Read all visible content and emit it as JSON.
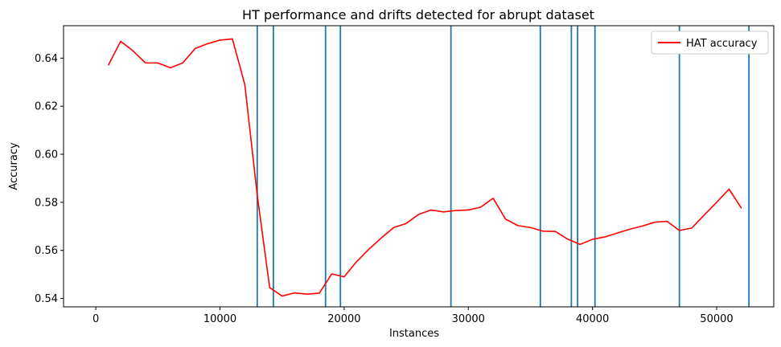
{
  "chart_data": {
    "type": "line",
    "title": "HT performance and drifts detected for abrupt dataset",
    "xlabel": "Instances",
    "ylabel": "Accuracy",
    "xlim": [
      -2600,
      54600
    ],
    "ylim": [
      0.5365,
      0.6535
    ],
    "xticks": [
      0,
      10000,
      20000,
      30000,
      40000,
      50000
    ],
    "yticks": [
      0.54,
      0.56,
      0.58,
      0.6,
      0.62,
      0.64
    ],
    "xtick_labels": [
      "0",
      "10000",
      "20000",
      "30000",
      "40000",
      "50000"
    ],
    "ytick_labels": [
      "0.54",
      "0.56",
      "0.58",
      "0.60",
      "0.62",
      "0.64"
    ],
    "grid": false,
    "legend_position": "top-right",
    "series": [
      {
        "name": "HAT accuracy",
        "color": "#ff0000",
        "x": [
          1000,
          2000,
          3000,
          4000,
          5000,
          6000,
          7000,
          8000,
          9000,
          10000,
          11000,
          12000,
          13000,
          14000,
          15000,
          16000,
          17000,
          18000,
          19000,
          20000,
          21000,
          22000,
          23000,
          24000,
          25000,
          26000,
          27000,
          28000,
          29000,
          30000,
          31000,
          32000,
          33000,
          34000,
          35000,
          36000,
          37000,
          38000,
          39000,
          40000,
          41000,
          42000,
          43000,
          44000,
          45000,
          46000,
          47000,
          48000,
          49000,
          50000,
          51000,
          52000
        ],
        "y": [
          0.637,
          0.647,
          0.643,
          0.638,
          0.638,
          0.636,
          0.638,
          0.644,
          0.646,
          0.6475,
          0.648,
          0.629,
          0.583,
          0.5445,
          0.541,
          0.5423,
          0.5418,
          0.5422,
          0.5502,
          0.549,
          0.5553,
          0.5605,
          0.5652,
          0.5695,
          0.5712,
          0.575,
          0.5768,
          0.576,
          0.5766,
          0.5768,
          0.578,
          0.5817,
          0.573,
          0.5703,
          0.5695,
          0.568,
          0.5679,
          0.5647,
          0.5625,
          0.5646,
          0.5656,
          0.5672,
          0.5688,
          0.5701,
          0.5717,
          0.5721,
          0.5683,
          0.5693,
          0.5747,
          0.58,
          0.5855,
          0.5775
        ]
      }
    ],
    "drift_lines": {
      "color": "#1f77b4",
      "x": [
        13000,
        14300,
        18500,
        19700,
        28600,
        35800,
        38300,
        38800,
        40200,
        47000,
        52600
      ]
    }
  }
}
